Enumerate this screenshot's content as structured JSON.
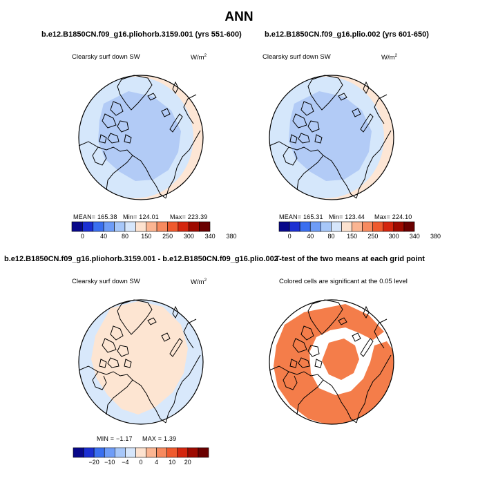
{
  "title": "ANN",
  "panels": [
    {
      "title": "b.e12.B1850CN.f09_g16.pliohorb.3159.001 (yrs 551-600)",
      "subtitle": "Clearsky surf down SW",
      "units_base": "W/m",
      "units_exp": "2",
      "stats": {
        "mean": "MEAN= 165.38",
        "min": "Min= 124.01",
        "max": "Max= 223.39"
      },
      "colorbar_ticks": [
        "0",
        "40",
        "80",
        "150",
        "250",
        "300",
        "340",
        "380"
      ]
    },
    {
      "title": "b.e12.B1850CN.f09_g16.plio.002 (yrs 601-650)",
      "subtitle": "Clearsky surf down SW",
      "units_base": "W/m",
      "units_exp": "2",
      "stats": {
        "mean": "MEAN= 165.31",
        "min": "Min= 123.44",
        "max": "Max= 224.10"
      },
      "colorbar_ticks": [
        "0",
        "40",
        "80",
        "150",
        "250",
        "300",
        "340",
        "380"
      ]
    },
    {
      "title": "b.e12.B1850CN.f09_g16.pliohorb.3159.001 - b.e12.B1850CN.f09_g16.plio.002",
      "subtitle": "Clearsky surf down SW",
      "units_base": "W/m",
      "units_exp": "2",
      "stats": {
        "min": "MIN =  −1.17",
        "max": "MAX =    1.39"
      },
      "colorbar_ticks": [
        "−20",
        "−10",
        "−4",
        "0",
        "4",
        "10",
        "20"
      ]
    },
    {
      "title": "T-test of the two means at each grid point",
      "subtitle": "Colored cells are significant at the 0.05 level"
    }
  ],
  "colors": {
    "ocean_blue": "#d5e7fb",
    "land_blue": "#b2cbf6",
    "edge_peach": "#fde6d5",
    "diff_blue": "#d8e8fb",
    "diff_peach": "#fde5d2",
    "ttest_orange": "#f47d4a",
    "abs_colorbar": [
      "#08088a",
      "#1b2fd2",
      "#3a6ff0",
      "#6e9cf7",
      "#a7c7f9",
      "#d6e6fb",
      "#fde2cf",
      "#fbb592",
      "#f78a5f",
      "#ef5a2e",
      "#d4260e",
      "#9e0a00",
      "#6a0000"
    ],
    "diff_colorbar": [
      "#08088a",
      "#1b2fd2",
      "#3a6ff0",
      "#6e9cf7",
      "#a7c7f9",
      "#d6e6fb",
      "#fde2cf",
      "#fbb592",
      "#f78a5f",
      "#ef5a2e",
      "#d4260e",
      "#9e0a00",
      "#6a0000"
    ]
  }
}
